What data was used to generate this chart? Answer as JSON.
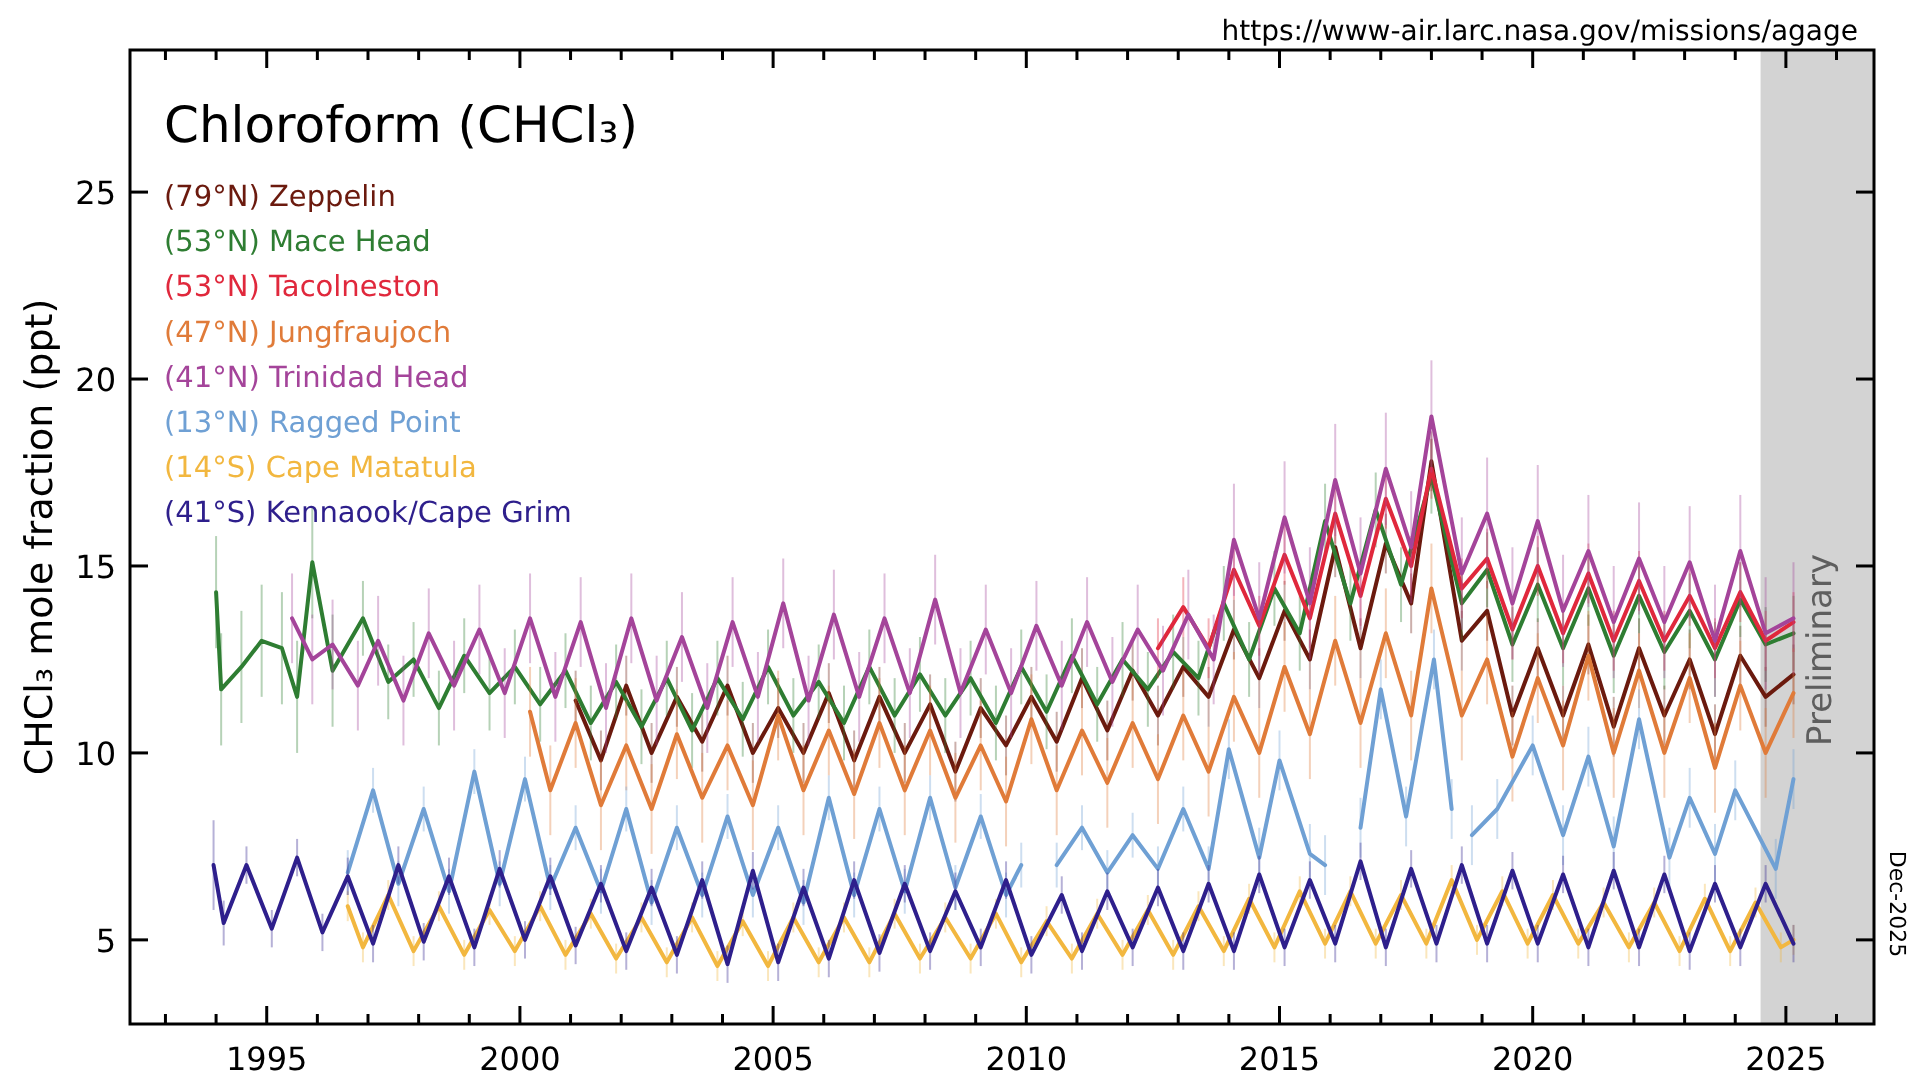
{
  "chart_data": {
    "type": "line",
    "title": "Chloroform (CHCl₃)",
    "ylabel": "CHCl₃ mole fraction (ppt)",
    "annotations": [
      "https://www-air.larc.nasa.gov/missions/agage",
      "Dec-2025"
    ],
    "xlim": [
      1992.3,
      2026.74
    ],
    "ylim": [
      2.75,
      28.8
    ],
    "xticks": [
      {
        "value": 1993,
        "label": null
      },
      {
        "value": 1994,
        "label": null
      },
      1995,
      {
        "value": 1996,
        "label": null
      },
      {
        "value": 1997,
        "label": null
      },
      {
        "value": 1998,
        "label": null
      },
      {
        "value": 1999,
        "label": null
      },
      2000,
      {
        "value": 2001,
        "label": null
      },
      {
        "value": 2002,
        "label": null
      },
      {
        "value": 2003,
        "label": null
      },
      {
        "value": 2004,
        "label": null
      },
      2005,
      {
        "value": 2006,
        "label": null
      },
      {
        "value": 2007,
        "label": null
      },
      {
        "value": 2008,
        "label": null
      },
      {
        "value": 2009,
        "label": null
      },
      2010,
      {
        "value": 2011,
        "label": null
      },
      {
        "value": 2012,
        "label": null
      },
      {
        "value": 2013,
        "label": null
      },
      {
        "value": 2014,
        "label": null
      },
      2015,
      {
        "value": 2016,
        "label": null
      },
      {
        "value": 2017,
        "label": null
      },
      {
        "value": 2018,
        "label": null
      },
      {
        "value": 2019,
        "label": null
      },
      2020,
      {
        "value": 2021,
        "label": null
      },
      {
        "value": 2022,
        "label": null
      },
      {
        "value": 2023,
        "label": null
      },
      {
        "value": 2024,
        "label": null
      },
      2025,
      {
        "value": 2026,
        "label": null
      }
    ],
    "yticks": [
      5,
      10,
      15,
      20,
      25
    ],
    "grid": false,
    "legend": "top left",
    "marker": "none",
    "bands": [
      {
        "axis": "x",
        "from": 2024.5,
        "to": 2026.74,
        "label": "Preliminary",
        "color": "#d3d3d3"
      }
    ],
    "series": [
      {
        "name": "(79°N) Zeppelin",
        "color": "#6b1a0e",
        "x": [
          2001.1,
          2001.6,
          2002.1,
          2002.6,
          2003.1,
          2003.6,
          2004.1,
          2004.6,
          2005.1,
          2005.6,
          2006.1,
          2006.6,
          2007.1,
          2007.6,
          2008.1,
          2008.6,
          2009.1,
          2009.6,
          2010.1,
          2010.6,
          2011.1,
          2011.6,
          2012.1,
          2012.6,
          2013.1,
          2013.6,
          2014.1,
          2014.6,
          2015.1,
          2015.6,
          2016.1,
          2016.6,
          2017.1,
          2017.6,
          2018.0,
          2018.6,
          2019.1,
          2019.6,
          2020.1,
          2020.6,
          2021.1,
          2021.6,
          2022.1,
          2022.6,
          2023.1,
          2023.6,
          2024.1,
          2024.6,
          2025.15
        ],
        "values": [
          11.4,
          9.8,
          11.8,
          10.0,
          11.5,
          10.3,
          11.8,
          10.0,
          11.2,
          10.0,
          11.6,
          9.8,
          11.5,
          10.0,
          11.3,
          9.5,
          11.2,
          10.2,
          11.5,
          10.3,
          12.0,
          10.6,
          12.2,
          11.0,
          12.3,
          11.5,
          13.3,
          12.0,
          13.8,
          12.5,
          15.5,
          12.8,
          15.6,
          14.0,
          17.8,
          13.0,
          13.8,
          11.0,
          12.8,
          11.0,
          12.9,
          10.7,
          12.8,
          11.0,
          12.5,
          10.5,
          12.6,
          11.5,
          12.1
        ],
        "errors": [
          0.8,
          0.8,
          0.8,
          0.8,
          0.8,
          0.8,
          0.8,
          0.8,
          0.8,
          0.8,
          0.8,
          0.8,
          0.8,
          0.8,
          0.8,
          0.8,
          0.8,
          0.8,
          0.8,
          0.8,
          0.8,
          0.8,
          0.8,
          0.8,
          0.8,
          0.8,
          0.8,
          0.8,
          0.8,
          0.8,
          0.8,
          0.8,
          0.8,
          0.8,
          0.8,
          0.8,
          0.8,
          0.8,
          0.8,
          0.8,
          0.8,
          0.8,
          0.8,
          0.8,
          0.8,
          0.8,
          0.8,
          0.8,
          0.8
        ]
      },
      {
        "name": "(53°N) Mace Head",
        "color": "#2e7d32",
        "x": [
          1994.0,
          1994.1,
          1994.5,
          1994.9,
          1995.3,
          1995.6,
          1995.9,
          1996.3,
          1996.9,
          1997.4,
          1997.9,
          1998.4,
          1998.9,
          1999.4,
          1999.9,
          2000.4,
          2000.9,
          2001.4,
          2001.9,
          2002.4,
          2002.9,
          2003.4,
          2003.9,
          2004.4,
          2004.9,
          2005.4,
          2005.9,
          2006.4,
          2006.9,
          2007.4,
          2007.9,
          2008.4,
          2008.9,
          2009.4,
          2009.9,
          2010.4,
          2010.9,
          2011.4,
          2011.9,
          2012.4,
          2012.9,
          2013.4,
          2013.9,
          2014.4,
          2014.9,
          2015.4,
          2015.9,
          2016.4,
          2016.9,
          2017.4,
          2018.0,
          2018.6,
          2019.1,
          2019.6,
          2020.1,
          2020.6,
          2021.1,
          2021.6,
          2022.1,
          2022.6,
          2023.1,
          2023.6,
          2024.1,
          2024.6,
          2025.15
        ],
        "values": [
          14.3,
          11.7,
          12.3,
          13.0,
          12.8,
          11.5,
          15.1,
          12.2,
          13.6,
          11.9,
          12.5,
          11.2,
          12.6,
          11.6,
          12.3,
          11.3,
          12.2,
          10.8,
          11.9,
          10.7,
          12.0,
          10.6,
          12.0,
          10.9,
          12.3,
          11.0,
          11.9,
          10.8,
          12.3,
          11.0,
          12.1,
          11.0,
          12.0,
          10.8,
          12.3,
          11.1,
          12.6,
          11.3,
          12.5,
          11.7,
          12.7,
          12.0,
          14.0,
          12.5,
          14.4,
          13.2,
          16.2,
          14.0,
          16.5,
          14.5,
          17.4,
          14.0,
          14.9,
          12.9,
          14.5,
          12.8,
          14.4,
          12.6,
          14.2,
          12.7,
          13.8,
          12.5,
          14.1,
          12.9,
          13.2
        ],
        "errors": [
          1.5,
          1.5,
          1.5,
          1.5,
          1.5,
          1.5,
          1.5,
          1.5,
          1.0,
          1.0,
          1.0,
          1.0,
          1.0,
          1.0,
          1.0,
          1.0,
          1.0,
          1.0,
          1.0,
          1.0,
          1.0,
          1.0,
          1.0,
          1.0,
          1.0,
          1.0,
          1.0,
          1.0,
          1.0,
          1.0,
          1.0,
          1.0,
          1.0,
          1.0,
          1.0,
          1.0,
          1.0,
          1.0,
          1.0,
          1.0,
          1.0,
          1.0,
          1.0,
          1.0,
          1.0,
          1.0,
          1.0,
          1.0,
          1.0,
          1.0,
          1.0,
          1.0,
          1.0,
          1.0,
          1.0,
          1.0,
          1.0,
          1.0,
          1.0,
          1.0,
          1.0,
          1.0,
          1.0,
          1.0,
          1.0
        ]
      },
      {
        "name": "(53°N) Tacolneston",
        "color": "#e0283c",
        "x": [
          2012.6,
          2013.1,
          2013.6,
          2014.1,
          2014.6,
          2015.1,
          2015.6,
          2016.1,
          2016.6,
          2017.1,
          2017.6,
          2018.0,
          2018.6,
          2019.1,
          2019.6,
          2020.1,
          2020.6,
          2021.1,
          2021.6,
          2022.1,
          2022.6,
          2023.1,
          2023.6,
          2024.1,
          2024.6,
          2025.15
        ],
        "values": [
          12.8,
          13.9,
          12.8,
          14.9,
          13.4,
          15.3,
          13.6,
          16.4,
          14.2,
          16.8,
          15.0,
          17.6,
          14.4,
          15.2,
          13.3,
          15.0,
          13.2,
          14.8,
          13.0,
          14.6,
          13.0,
          14.2,
          12.8,
          14.3,
          13.0,
          13.5
        ],
        "errors": [
          0.8,
          0.8,
          0.8,
          0.8,
          0.8,
          0.8,
          0.8,
          0.8,
          0.8,
          0.8,
          0.8,
          0.8,
          0.8,
          0.8,
          0.8,
          0.8,
          0.8,
          0.8,
          0.8,
          0.8,
          0.8,
          0.8,
          0.8,
          0.8,
          0.8,
          0.8
        ]
      },
      {
        "name": "(47°N) Jungfraujoch",
        "color": "#e07b39",
        "x": [
          2000.2,
          2000.6,
          2001.1,
          2001.6,
          2002.1,
          2002.6,
          2003.1,
          2003.6,
          2004.1,
          2004.6,
          2005.1,
          2005.6,
          2006.1,
          2006.6,
          2007.1,
          2007.6,
          2008.1,
          2008.6,
          2009.1,
          2009.6,
          2010.1,
          2010.6,
          2011.1,
          2011.6,
          2012.1,
          2012.6,
          2013.1,
          2013.6,
          2014.1,
          2014.6,
          2015.1,
          2015.6,
          2016.1,
          2016.6,
          2017.1,
          2017.6,
          2018.0,
          2018.6,
          2019.1,
          2019.6,
          2020.1,
          2020.6,
          2021.1,
          2021.6,
          2022.1,
          2022.6,
          2023.1,
          2023.6,
          2024.1,
          2024.6,
          2025.15
        ],
        "values": [
          11.1,
          9.0,
          10.8,
          8.6,
          10.2,
          8.5,
          10.5,
          8.8,
          10.2,
          8.6,
          11.0,
          9.0,
          10.6,
          8.9,
          10.8,
          9.0,
          10.6,
          8.8,
          10.2,
          8.7,
          10.9,
          9.0,
          10.6,
          9.2,
          10.8,
          9.3,
          11.0,
          9.5,
          11.5,
          10.0,
          12.3,
          10.5,
          13.0,
          10.8,
          13.2,
          11.0,
          14.4,
          11.0,
          12.5,
          9.9,
          12.0,
          10.2,
          12.6,
          10.0,
          12.2,
          10.0,
          12.0,
          9.6,
          11.8,
          10.0,
          11.6
        ],
        "errors": [
          1.2,
          1.2,
          1.2,
          1.2,
          1.2,
          1.2,
          1.2,
          1.2,
          1.2,
          1.2,
          1.2,
          1.2,
          1.2,
          1.2,
          1.2,
          1.2,
          1.2,
          1.2,
          1.2,
          1.2,
          1.2,
          1.2,
          1.2,
          1.2,
          1.2,
          1.2,
          1.2,
          1.2,
          1.2,
          1.2,
          1.2,
          1.2,
          1.2,
          1.2,
          1.2,
          1.2,
          1.2,
          1.2,
          1.2,
          1.2,
          1.2,
          1.2,
          1.2,
          1.2,
          1.0,
          1.2,
          1.2,
          1.2,
          1.2,
          1.2,
          1.2
        ]
      },
      {
        "name": "(41°N) Trinidad Head",
        "color": "#a4449a",
        "x": [
          1995.5,
          1995.9,
          1996.3,
          1996.8,
          1997.2,
          1997.7,
          1998.2,
          1998.7,
          1999.2,
          1999.7,
          2000.2,
          2000.7,
          2001.2,
          2001.7,
          2002.2,
          2002.7,
          2003.2,
          2003.7,
          2004.2,
          2004.7,
          2005.2,
          2005.7,
          2006.2,
          2006.7,
          2007.2,
          2007.7,
          2008.2,
          2008.7,
          2009.2,
          2009.7,
          2010.2,
          2010.7,
          2011.2,
          2011.7,
          2012.2,
          2012.7,
          2013.2,
          2013.7,
          2014.1,
          2014.6,
          2015.1,
          2015.6,
          2016.1,
          2016.6,
          2017.1,
          2017.6,
          2018.0,
          2018.6,
          2019.1,
          2019.6,
          2020.1,
          2020.6,
          2021.1,
          2021.6,
          2022.1,
          2022.6,
          2023.1,
          2023.6,
          2024.1,
          2024.6,
          2025.15
        ],
        "values": [
          13.6,
          12.5,
          12.9,
          11.8,
          13.0,
          11.4,
          13.2,
          11.8,
          13.3,
          11.6,
          13.6,
          11.5,
          13.5,
          11.2,
          13.6,
          11.4,
          13.1,
          11.2,
          13.5,
          11.5,
          14.0,
          11.4,
          13.7,
          11.5,
          13.6,
          11.6,
          14.1,
          11.6,
          13.3,
          11.6,
          13.4,
          11.8,
          13.5,
          11.9,
          13.3,
          12.2,
          13.7,
          12.5,
          15.7,
          13.6,
          16.3,
          14.0,
          17.3,
          14.8,
          17.6,
          15.5,
          19.0,
          14.8,
          16.4,
          14.0,
          16.2,
          13.8,
          15.4,
          13.5,
          15.2,
          13.5,
          15.1,
          13.0,
          15.4,
          13.2,
          13.6
        ],
        "errors": [
          1.2,
          1.2,
          1.2,
          1.2,
          1.2,
          1.2,
          1.2,
          1.2,
          1.2,
          1.2,
          1.2,
          1.2,
          1.2,
          1.2,
          1.2,
          1.2,
          1.2,
          1.2,
          1.2,
          1.2,
          1.2,
          1.2,
          1.2,
          1.2,
          1.2,
          1.2,
          1.2,
          1.2,
          1.2,
          1.2,
          1.2,
          1.2,
          1.2,
          1.2,
          1.2,
          1.2,
          1.2,
          1.2,
          1.5,
          1.5,
          1.5,
          1.5,
          1.5,
          1.5,
          1.5,
          1.5,
          1.5,
          1.5,
          1.5,
          1.5,
          1.5,
          1.5,
          1.5,
          1.5,
          1.5,
          1.5,
          1.5,
          1.5,
          1.5,
          1.5,
          1.5
        ]
      },
      {
        "name": "(13°N) Ragged Point",
        "color": "#6fa0d4",
        "x": [
          1996.6,
          1997.1,
          1997.6,
          1998.1,
          1998.6,
          1999.1,
          1999.6,
          2000.1,
          2000.6,
          2001.1,
          2001.6,
          2002.1,
          2002.6,
          2003.1,
          2003.6,
          2004.1,
          2004.6,
          2005.1,
          2005.6,
          2006.1,
          2006.6,
          2007.1,
          2007.6,
          2008.1,
          2008.6,
          2009.1,
          2009.6,
          2009.9,
          2010.1,
          2010.6,
          2011.1,
          2011.6,
          2012.1,
          2012.6,
          2013.1,
          2013.6,
          2014.0,
          2014.6,
          2015.0,
          2015.6,
          2015.9,
          2016.2,
          2016.6,
          2017.0,
          2017.5,
          2018.05,
          2018.4,
          2018.6,
          2018.8,
          2019.3,
          2020.0,
          2020.6,
          2021.1,
          2021.6,
          2022.1,
          2022.7,
          2023.1,
          2023.6,
          2024.0,
          2024.8,
          2025.15
        ],
        "values": [
          6.8,
          9.0,
          6.5,
          8.5,
          6.3,
          9.5,
          6.5,
          9.3,
          6.4,
          8.0,
          6.3,
          8.5,
          6.0,
          8.0,
          6.2,
          8.3,
          6.2,
          8.0,
          6.0,
          8.8,
          6.2,
          8.5,
          6.3,
          8.8,
          6.4,
          8.3,
          6.2,
          7.0,
          null,
          7.0,
          8.0,
          6.8,
          7.8,
          6.9,
          8.5,
          6.9,
          10.1,
          7.2,
          9.8,
          7.3,
          7.0,
          null,
          8.0,
          11.7,
          8.3,
          12.5,
          8.5,
          null,
          7.8,
          8.5,
          10.2,
          7.8,
          9.9,
          7.5,
          10.9,
          7.2,
          8.8,
          7.3,
          9.0,
          6.9,
          9.3
        ],
        "errors": [
          0.6,
          0.6,
          0.6,
          0.6,
          0.6,
          0.6,
          0.6,
          0.6,
          0.6,
          0.6,
          0.6,
          0.6,
          0.6,
          0.6,
          0.6,
          0.6,
          0.6,
          0.6,
          0.6,
          0.6,
          0.6,
          0.6,
          0.6,
          0.6,
          0.6,
          0.6,
          0.6,
          0.6,
          null,
          0.6,
          0.6,
          0.6,
          0.6,
          0.6,
          0.6,
          0.6,
          0.8,
          0.8,
          0.8,
          0.8,
          0.8,
          null,
          0.8,
          0.8,
          0.8,
          0.8,
          0.8,
          null,
          0.8,
          0.8,
          0.8,
          0.8,
          0.8,
          0.8,
          0.8,
          0.8,
          0.8,
          0.8,
          0.8,
          0.8,
          0.8
        ]
      },
      {
        "name": "(14°S) Cape Matatula",
        "color": "#f2b73f",
        "x": [
          1996.6,
          1996.9,
          1997.4,
          1997.9,
          1998.4,
          1998.9,
          1999.4,
          1999.9,
          2000.4,
          2000.9,
          2001.4,
          2001.9,
          2002.4,
          2002.9,
          2003.4,
          2003.9,
          2004.4,
          2004.9,
          2005.4,
          2005.9,
          2006.4,
          2006.9,
          2007.4,
          2007.9,
          2008.4,
          2008.9,
          2009.4,
          2009.9,
          2010.4,
          2010.9,
          2011.4,
          2011.9,
          2012.4,
          2012.9,
          2013.4,
          2013.9,
          2014.4,
          2014.9,
          2015.4,
          2015.9,
          2016.4,
          2016.9,
          2017.4,
          2017.9,
          2018.4,
          2018.9,
          2019.4,
          2019.9,
          2020.4,
          2020.9,
          2021.4,
          2021.9,
          2022.4,
          2022.9,
          2023.4,
          2023.9,
          2024.4,
          2024.9,
          2025.15
        ],
        "values": [
          5.9,
          4.8,
          6.2,
          4.7,
          5.9,
          4.6,
          5.8,
          4.7,
          5.9,
          4.6,
          5.7,
          4.5,
          5.6,
          4.4,
          5.6,
          4.3,
          5.5,
          4.3,
          5.6,
          4.4,
          5.6,
          4.4,
          5.7,
          4.5,
          5.6,
          4.5,
          5.7,
          4.4,
          5.5,
          4.5,
          5.7,
          4.6,
          5.8,
          4.6,
          5.9,
          4.7,
          6.1,
          4.8,
          6.3,
          4.9,
          6.3,
          4.9,
          6.2,
          4.9,
          6.6,
          5.0,
          6.3,
          4.9,
          6.2,
          4.9,
          6.0,
          4.8,
          6.0,
          4.7,
          6.1,
          4.7,
          6.0,
          4.8,
          5.0
        ],
        "errors": [
          0.4,
          0.4,
          0.4,
          0.4,
          0.4,
          0.4,
          0.4,
          0.4,
          0.4,
          0.4,
          0.4,
          0.4,
          0.4,
          0.4,
          0.4,
          0.4,
          0.4,
          0.4,
          0.4,
          0.4,
          0.4,
          0.4,
          0.4,
          0.4,
          0.4,
          0.4,
          0.4,
          0.4,
          0.4,
          0.4,
          0.4,
          0.4,
          0.4,
          0.4,
          0.4,
          0.4,
          0.4,
          0.4,
          0.4,
          0.4,
          0.4,
          0.4,
          0.4,
          0.4,
          0.4,
          0.4,
          0.4,
          0.4,
          0.4,
          0.4,
          0.4,
          0.4,
          0.4,
          0.4,
          0.4,
          0.4,
          0.4,
          0.4,
          0.4
        ]
      },
      {
        "name": "(41°S) Kennaook/Cape Grim",
        "color": "#2e1f8c",
        "x": [
          1993.95,
          1994.15,
          1994.6,
          1995.1,
          1995.6,
          1996.1,
          1996.6,
          1997.1,
          1997.6,
          1998.1,
          1998.6,
          1999.1,
          1999.6,
          2000.1,
          2000.6,
          2001.1,
          2001.6,
          2002.1,
          2002.6,
          2003.1,
          2003.6,
          2004.1,
          2004.6,
          2005.1,
          2005.6,
          2006.1,
          2006.6,
          2007.1,
          2007.6,
          2008.1,
          2008.6,
          2009.1,
          2009.6,
          2010.1,
          2010.7,
          2011.1,
          2011.6,
          2012.1,
          2012.6,
          2013.1,
          2013.6,
          2014.1,
          2014.6,
          2015.1,
          2015.6,
          2016.1,
          2016.6,
          2017.1,
          2017.6,
          2018.1,
          2018.6,
          2019.1,
          2019.6,
          2020.1,
          2020.6,
          2021.1,
          2021.6,
          2022.1,
          2022.6,
          2023.1,
          2023.6,
          2024.1,
          2024.6,
          2025.15
        ],
        "values": [
          7.0,
          5.45,
          7.0,
          5.3,
          7.2,
          5.2,
          6.7,
          4.9,
          7.0,
          4.95,
          6.7,
          4.8,
          6.9,
          5.0,
          6.7,
          4.85,
          6.5,
          4.7,
          6.4,
          4.6,
          6.6,
          4.35,
          6.85,
          4.4,
          6.4,
          4.5,
          6.6,
          4.65,
          6.5,
          4.7,
          6.3,
          4.8,
          6.6,
          4.6,
          6.2,
          4.7,
          6.3,
          4.8,
          6.4,
          4.7,
          6.5,
          4.7,
          6.75,
          4.8,
          6.6,
          4.9,
          7.1,
          4.8,
          6.9,
          4.9,
          7.0,
          4.9,
          6.85,
          4.9,
          6.75,
          4.8,
          6.85,
          4.8,
          6.75,
          4.7,
          6.5,
          4.8,
          6.5,
          4.9
        ],
        "errors": [
          1.2,
          0.6,
          0.5,
          0.5,
          0.5,
          0.5,
          0.5,
          0.5,
          0.5,
          0.5,
          0.5,
          0.5,
          0.5,
          0.5,
          0.5,
          0.5,
          0.5,
          0.5,
          0.5,
          0.5,
          0.5,
          0.5,
          0.5,
          0.5,
          0.5,
          0.5,
          0.5,
          0.5,
          0.5,
          0.5,
          0.5,
          0.5,
          0.5,
          0.5,
          0.5,
          0.5,
          0.5,
          0.5,
          0.5,
          0.5,
          0.5,
          0.5,
          0.5,
          0.5,
          0.5,
          0.5,
          0.5,
          0.5,
          0.5,
          0.5,
          0.5,
          0.5,
          0.5,
          0.5,
          0.5,
          0.5,
          0.5,
          0.5,
          0.5,
          0.5,
          0.5,
          0.5,
          0.5,
          0.5
        ]
      }
    ]
  }
}
